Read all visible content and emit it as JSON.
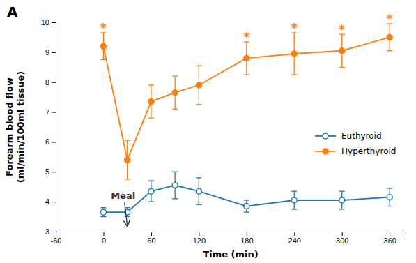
{
  "chart_data": {
    "type": "line",
    "title": "A",
    "x_label": "Time (min)",
    "y_label": "Forearm blood flow\n(ml/min/100ml tissue)",
    "xlim": [
      -60,
      380
    ],
    "ylim": [
      3,
      10
    ],
    "xticks": [
      -60,
      0,
      60,
      120,
      180,
      240,
      300,
      360
    ],
    "yticks": [
      3,
      4,
      5,
      6,
      7,
      8,
      9,
      10
    ],
    "grid": false,
    "legend": "right",
    "x": [
      0,
      30,
      60,
      90,
      120,
      180,
      240,
      300,
      360
    ],
    "series": [
      {
        "name": "Euthyroid",
        "marker": "open-circle",
        "values": [
          3.65,
          3.65,
          4.35,
          4.55,
          4.35,
          3.85,
          4.05,
          4.05,
          4.15
        ],
        "errors": [
          0.15,
          0.15,
          0.35,
          0.45,
          0.45,
          0.2,
          0.3,
          0.3,
          0.3
        ]
      },
      {
        "name": "Hyperthyroid",
        "marker": "circle",
        "values": [
          9.2,
          5.4,
          7.35,
          7.65,
          7.9,
          8.8,
          8.95,
          9.05,
          9.5
        ],
        "errors": [
          0.45,
          0.65,
          0.55,
          0.55,
          0.65,
          0.55,
          0.7,
          0.55,
          0.45
        ]
      }
    ],
    "annotations": [
      {
        "text": "Meal",
        "x": 30
      },
      {
        "text": "*",
        "x": 0,
        "series": "Hyperthyroid"
      },
      {
        "text": "*",
        "x": 180,
        "series": "Hyperthyroid"
      },
      {
        "text": "*",
        "x": 240,
        "series": "Hyperthyroid"
      },
      {
        "text": "*",
        "x": 300,
        "series": "Hyperthyroid"
      },
      {
        "text": "*",
        "x": 360,
        "series": "Hyperthyroid"
      }
    ]
  }
}
